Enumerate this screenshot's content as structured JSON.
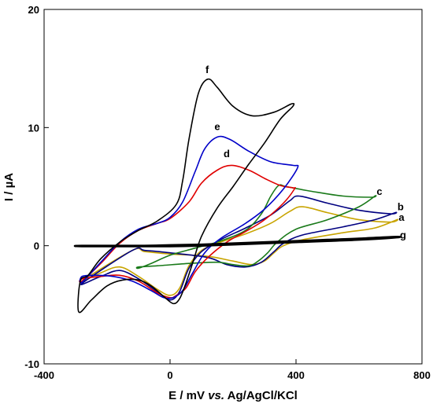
{
  "chart_data": {
    "type": "line",
    "title": "",
    "xlabel": "E / mV vs. Ag/AgCl/KCl",
    "xlabel_parts": {
      "pre": "E / mV ",
      "italic": "vs.",
      "post": " Ag/AgCl/KCl"
    },
    "ylabel": "I / µA",
    "xlim": [
      -400,
      800
    ],
    "ylim": [
      -10,
      20
    ],
    "xticks": [
      -400,
      0,
      400,
      800
    ],
    "yticks": [
      -10,
      0,
      10,
      20
    ],
    "xtick_labels": [
      "-400",
      "0",
      "400",
      "800"
    ],
    "ytick_labels": [
      "-10",
      "0",
      "10",
      "20"
    ],
    "grid": false,
    "series": [
      {
        "name": "a",
        "color": "#c8a400",
        "label_pos": [
          735,
          2.1
        ],
        "points": [
          [
            -280,
            -3.0
          ],
          [
            -220,
            -2.3
          ],
          [
            -160,
            -1.8
          ],
          [
            -100,
            -2.6
          ],
          [
            -40,
            -3.7
          ],
          [
            0,
            -4.2
          ],
          [
            30,
            -3.6
          ],
          [
            60,
            -1.7
          ],
          [
            100,
            -0.4
          ],
          [
            160,
            0.3
          ],
          [
            240,
            1.0
          ],
          [
            320,
            1.9
          ],
          [
            380,
            2.9
          ],
          [
            420,
            3.3
          ],
          [
            500,
            2.8
          ],
          [
            600,
            2.2
          ],
          [
            700,
            2.0
          ],
          [
            720,
            2.2
          ],
          [
            650,
            1.5
          ],
          [
            550,
            1.1
          ],
          [
            420,
            0.5
          ],
          [
            360,
            0.0
          ],
          [
            330,
            -0.6
          ],
          [
            300,
            -1.3
          ],
          [
            260,
            -1.6
          ],
          [
            200,
            -1.3
          ],
          [
            120,
            -0.9
          ],
          [
            0,
            -0.7
          ],
          [
            -80,
            -0.5
          ],
          [
            -120,
            -0.4
          ]
        ]
      },
      {
        "name": "b",
        "color": "#000080",
        "label_pos": [
          732,
          3.0
        ],
        "points": [
          [
            -280,
            -3.2
          ],
          [
            -220,
            -2.6
          ],
          [
            -160,
            -2.1
          ],
          [
            -100,
            -2.8
          ],
          [
            -40,
            -3.9
          ],
          [
            0,
            -4.6
          ],
          [
            30,
            -3.9
          ],
          [
            60,
            -1.9
          ],
          [
            100,
            -0.5
          ],
          [
            160,
            0.5
          ],
          [
            240,
            1.5
          ],
          [
            320,
            2.6
          ],
          [
            380,
            3.8
          ],
          [
            410,
            4.2
          ],
          [
            500,
            3.6
          ],
          [
            600,
            3.0
          ],
          [
            700,
            2.7
          ],
          [
            715,
            2.8
          ],
          [
            650,
            2.2
          ],
          [
            550,
            1.6
          ],
          [
            420,
            0.9
          ],
          [
            360,
            0.2
          ],
          [
            330,
            -0.5
          ],
          [
            290,
            -1.4
          ],
          [
            240,
            -1.8
          ],
          [
            180,
            -1.6
          ],
          [
            120,
            -1.0
          ],
          [
            0,
            -0.6
          ],
          [
            -80,
            -0.4
          ],
          [
            -120,
            -0.4
          ]
        ]
      },
      {
        "name": "c",
        "color": "#1a7a1a",
        "label_pos": [
          665,
          4.3
        ],
        "points": [
          [
            -100,
            -1.9
          ],
          [
            -60,
            -1.5
          ],
          [
            0,
            -0.8
          ],
          [
            80,
            -0.2
          ],
          [
            160,
            0.4
          ],
          [
            240,
            1.3
          ],
          [
            290,
            2.7
          ],
          [
            320,
            4.2
          ],
          [
            345,
            5.1
          ],
          [
            370,
            5.0
          ],
          [
            450,
            4.6
          ],
          [
            550,
            4.2
          ],
          [
            640,
            4.1
          ],
          [
            650,
            4.2
          ],
          [
            600,
            3.3
          ],
          [
            500,
            2.2
          ],
          [
            400,
            1.4
          ],
          [
            340,
            0.3
          ],
          [
            310,
            -0.6
          ],
          [
            280,
            -1.3
          ],
          [
            250,
            -1.7
          ],
          [
            200,
            -1.6
          ],
          [
            150,
            -1.4
          ],
          [
            60,
            -1.5
          ],
          [
            -40,
            -1.7
          ],
          [
            -100,
            -1.8
          ]
        ]
      },
      {
        "name": "d",
        "color": "#e00000",
        "label_pos": [
          180,
          7.5
        ],
        "points": [
          [
            -280,
            -3.0
          ],
          [
            -220,
            -1.5
          ],
          [
            -160,
            0.2
          ],
          [
            -100,
            1.3
          ],
          [
            -40,
            1.9
          ],
          [
            0,
            2.3
          ],
          [
            60,
            3.7
          ],
          [
            100,
            5.3
          ],
          [
            150,
            6.4
          ],
          [
            195,
            6.8
          ],
          [
            250,
            6.4
          ],
          [
            300,
            5.7
          ],
          [
            350,
            5.1
          ],
          [
            390,
            4.9
          ],
          [
            395,
            4.8
          ],
          [
            360,
            3.6
          ],
          [
            300,
            2.2
          ],
          [
            240,
            1.2
          ],
          [
            180,
            0.3
          ],
          [
            120,
            -1.0
          ],
          [
            80,
            -2.2
          ],
          [
            50,
            -3.6
          ],
          [
            20,
            -4.2
          ],
          [
            0,
            -4.4
          ],
          [
            -40,
            -4.0
          ],
          [
            -100,
            -3.0
          ],
          [
            -160,
            -2.5
          ],
          [
            -220,
            -2.6
          ],
          [
            -280,
            -2.8
          ]
        ]
      },
      {
        "name": "e",
        "color": "#0000c8",
        "label_pos": [
          150,
          9.8
        ],
        "points": [
          [
            -280,
            -3.1
          ],
          [
            -220,
            -1.4
          ],
          [
            -160,
            0.3
          ],
          [
            -100,
            1.4
          ],
          [
            -40,
            1.9
          ],
          [
            0,
            2.4
          ],
          [
            40,
            3.7
          ],
          [
            80,
            6.3
          ],
          [
            110,
            8.2
          ],
          [
            150,
            9.2
          ],
          [
            190,
            9.0
          ],
          [
            250,
            8.0
          ],
          [
            320,
            7.1
          ],
          [
            390,
            6.8
          ],
          [
            405,
            6.6
          ],
          [
            360,
            4.8
          ],
          [
            300,
            3.1
          ],
          [
            240,
            1.9
          ],
          [
            160,
            0.6
          ],
          [
            110,
            -0.6
          ],
          [
            70,
            -2.4
          ],
          [
            40,
            -3.8
          ],
          [
            10,
            -4.4
          ],
          [
            -20,
            -4.4
          ],
          [
            -60,
            -3.8
          ],
          [
            -120,
            -3.0
          ],
          [
            -180,
            -2.6
          ],
          [
            -240,
            -2.5
          ],
          [
            -280,
            -2.6
          ]
        ]
      },
      {
        "name": "f",
        "color": "#000000",
        "label_pos": [
          118,
          14.6
        ],
        "points": [
          [
            -290,
            -5.6
          ],
          [
            -250,
            -4.6
          ],
          [
            -200,
            -3.4
          ],
          [
            -150,
            -2.9
          ],
          [
            -100,
            -2.9
          ],
          [
            -60,
            -3.4
          ],
          [
            -20,
            -4.3
          ],
          [
            10,
            -4.9
          ],
          [
            30,
            -4.5
          ],
          [
            50,
            -3.2
          ],
          [
            75,
            -1.2
          ],
          [
            100,
            0.8
          ],
          [
            150,
            3.2
          ],
          [
            200,
            5.0
          ],
          [
            250,
            6.9
          ],
          [
            300,
            8.7
          ],
          [
            350,
            10.7
          ],
          [
            390,
            11.8
          ],
          [
            385,
            12.0
          ],
          [
            330,
            11.3
          ],
          [
            260,
            11.0
          ],
          [
            200,
            11.8
          ],
          [
            150,
            13.4
          ],
          [
            120,
            14.1
          ],
          [
            90,
            12.9
          ],
          [
            60,
            9.0
          ],
          [
            40,
            5.5
          ],
          [
            20,
            3.5
          ],
          [
            -40,
            2.1
          ],
          [
            -100,
            1.3
          ],
          [
            -160,
            0.3
          ],
          [
            -220,
            -1.1
          ],
          [
            -260,
            -2.5
          ],
          [
            -285,
            -3.0
          ]
        ]
      },
      {
        "name": "g",
        "color": "#000000",
        "label_pos": [
          740,
          0.6
        ],
        "points": [
          [
            -280,
            0.0
          ],
          [
            -100,
            0.0
          ],
          [
            0,
            0.05
          ],
          [
            100,
            0.1
          ],
          [
            200,
            0.2
          ],
          [
            300,
            0.3
          ],
          [
            400,
            0.4
          ],
          [
            500,
            0.5
          ],
          [
            600,
            0.6
          ],
          [
            710,
            0.75
          ],
          [
            720,
            0.7
          ],
          [
            600,
            0.5
          ],
          [
            500,
            0.4
          ],
          [
            400,
            0.3
          ],
          [
            300,
            0.2
          ],
          [
            200,
            0.1
          ],
          [
            100,
            0.0
          ],
          [
            0,
            -0.05
          ],
          [
            -100,
            -0.05
          ],
          [
            -280,
            -0.05
          ]
        ]
      }
    ]
  }
}
